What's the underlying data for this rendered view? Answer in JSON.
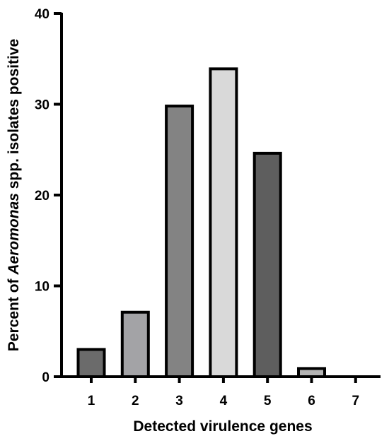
{
  "chart_data": {
    "type": "bar",
    "categories": [
      "1",
      "2",
      "3",
      "4",
      "5",
      "6",
      "7"
    ],
    "values": [
      3,
      7.1,
      29.8,
      33.9,
      24.6,
      0.9,
      0
    ],
    "bar_colors": [
      "#6b6b6b",
      "#a3a3a6",
      "#838383",
      "#d9d9d9",
      "#5e5e5e",
      "#b3b3b3",
      "#d9d9d9"
    ],
    "xlabel": "Detected virulence genes",
    "ylabel_parts": {
      "before": "Percent of ",
      "italic": "Aeromonas",
      "after": " spp. isolates positive"
    },
    "yticks": [
      "0",
      "10",
      "20",
      "30",
      "40"
    ],
    "ylim": [
      0,
      40
    ],
    "grid": false,
    "legend": "none"
  }
}
